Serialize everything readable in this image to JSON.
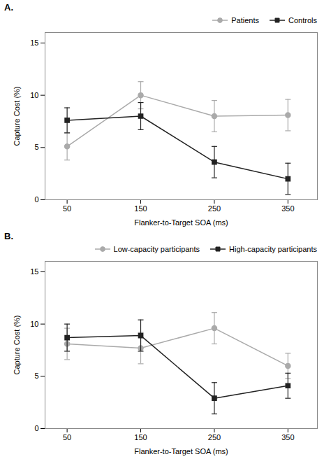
{
  "chart_data": [
    {
      "type": "line",
      "title": "A.",
      "x": [
        50,
        150,
        250,
        350
      ],
      "xlim": [
        20,
        390
      ],
      "xticks": [
        50,
        150,
        250,
        350
      ],
      "ylim": [
        0,
        16
      ],
      "yticks": [
        0,
        5,
        10,
        15
      ],
      "xlabel": "Flanker-to-Target SOA (ms)",
      "ylabel": "Capture Cost (%)",
      "legend": "upper right",
      "series": [
        {
          "name": "Patients",
          "color": "#aaaaaa",
          "marker": "circle",
          "line_style": "solid",
          "values": [
            5.1,
            10.0,
            8.0,
            8.1
          ],
          "yerr": [
            1.3,
            1.3,
            1.5,
            1.5
          ]
        },
        {
          "name": "Controls",
          "color": "#222222",
          "marker": "square",
          "line_style": "solid",
          "values": [
            7.6,
            8.0,
            3.6,
            2.0
          ],
          "yerr": [
            1.2,
            1.3,
            1.5,
            1.5
          ]
        }
      ]
    },
    {
      "type": "line",
      "title": "B.",
      "x": [
        50,
        150,
        250,
        350
      ],
      "xlim": [
        20,
        390
      ],
      "xticks": [
        50,
        150,
        250,
        350
      ],
      "ylim": [
        0,
        16
      ],
      "yticks": [
        0,
        5,
        10,
        15
      ],
      "xlabel": "Flanker-to-Target SOA (ms)",
      "ylabel": "Capture Cost (%)",
      "legend": "upper right",
      "series": [
        {
          "name": "Low-capacity participants",
          "color": "#aaaaaa",
          "marker": "circle",
          "line_style": "solid",
          "values": [
            8.1,
            7.7,
            9.6,
            6.0
          ],
          "yerr": [
            1.5,
            1.5,
            1.5,
            1.2
          ]
        },
        {
          "name": "High-capacity participants",
          "color": "#222222",
          "marker": "square",
          "line_style": "solid",
          "values": [
            8.7,
            8.9,
            2.9,
            4.1
          ],
          "yerr": [
            1.3,
            1.5,
            1.5,
            1.2
          ]
        }
      ]
    }
  ]
}
